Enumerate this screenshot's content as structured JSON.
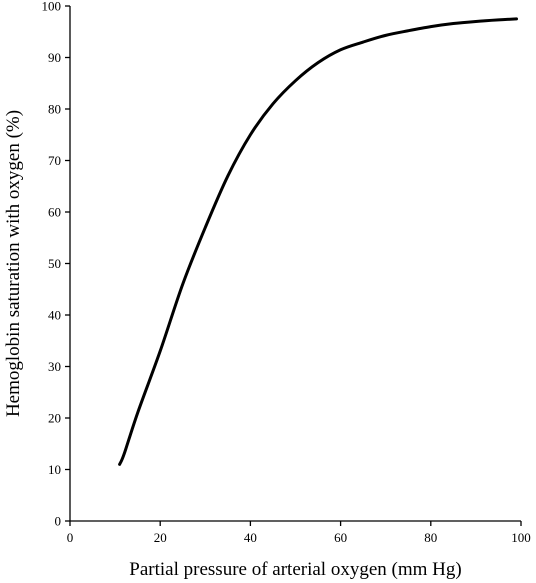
{
  "chart_data": {
    "type": "line",
    "title": "",
    "xlabel": "Partial pressure of arterial oxygen (mm Hg)",
    "ylabel": "Hemoglobin saturation with oxygen (%)",
    "xlim": [
      0,
      100
    ],
    "ylim": [
      0,
      100
    ],
    "xticks": [
      "0",
      "20",
      "40",
      "60",
      "80",
      "100"
    ],
    "yticks": [
      "0",
      "10",
      "20",
      "30",
      "40",
      "50",
      "60",
      "70",
      "80",
      "90",
      "100"
    ],
    "grid": false,
    "legend": "none",
    "line_color": "#000000",
    "series": [
      {
        "x": [
          11,
          12,
          15,
          20,
          25,
          30,
          35,
          40,
          45,
          50,
          55,
          60,
          65,
          70,
          75,
          80,
          85,
          90,
          95,
          99
        ],
        "y": [
          11,
          13,
          21,
          33,
          46,
          57,
          67,
          75,
          81,
          85.5,
          89,
          91.5,
          93,
          94.3,
          95.2,
          96,
          96.6,
          97,
          97.3,
          97.5
        ]
      }
    ]
  }
}
